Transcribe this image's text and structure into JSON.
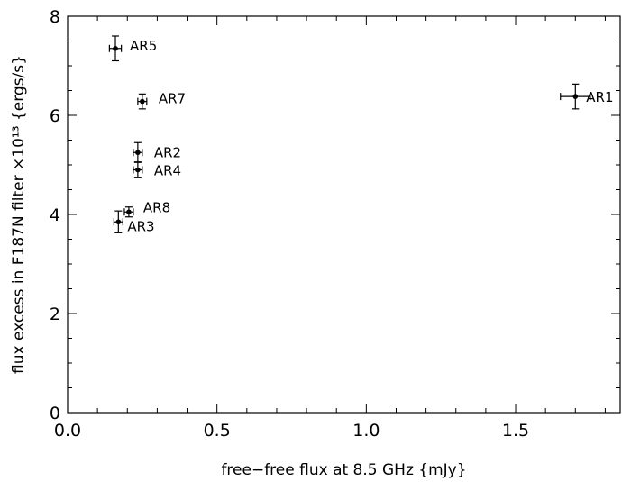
{
  "chart_data": {
    "type": "scatter",
    "xlabel": "free−free flux at 8.5 GHz {mJy}",
    "ylabel": "flux excess in F187N filter ×10¹³ {ergs/s}",
    "xlim": [
      0.0,
      1.85
    ],
    "ylim": [
      0,
      8
    ],
    "x_ticks": [
      0.0,
      0.5,
      1.0,
      1.5
    ],
    "x_tick_labels": [
      "0.0",
      "0.5",
      "1.0",
      "1.5"
    ],
    "y_ticks": [
      0,
      2,
      4,
      6,
      8
    ],
    "y_tick_labels": [
      "0",
      "2",
      "4",
      "6",
      "8"
    ],
    "grid": false,
    "points": [
      {
        "label": "AR1",
        "x": 1.7,
        "y": 6.38,
        "xerr": 0.05,
        "yerr": 0.25
      },
      {
        "label": "AR2",
        "x": 0.235,
        "y": 5.25,
        "xerr": 0.015,
        "yerr": 0.2
      },
      {
        "label": "AR3",
        "x": 0.17,
        "y": 3.85,
        "xerr": 0.015,
        "yerr": 0.22
      },
      {
        "label": "AR4",
        "x": 0.235,
        "y": 4.9,
        "xerr": 0.015,
        "yerr": 0.16
      },
      {
        "label": "AR5",
        "x": 0.16,
        "y": 7.35,
        "xerr": 0.02,
        "yerr": 0.25
      },
      {
        "label": "AR7",
        "x": 0.25,
        "y": 6.28,
        "xerr": 0.015,
        "yerr": 0.15
      },
      {
        "label": "AR8",
        "x": 0.205,
        "y": 4.05,
        "xerr": 0.015,
        "yerr": 0.1
      }
    ]
  }
}
